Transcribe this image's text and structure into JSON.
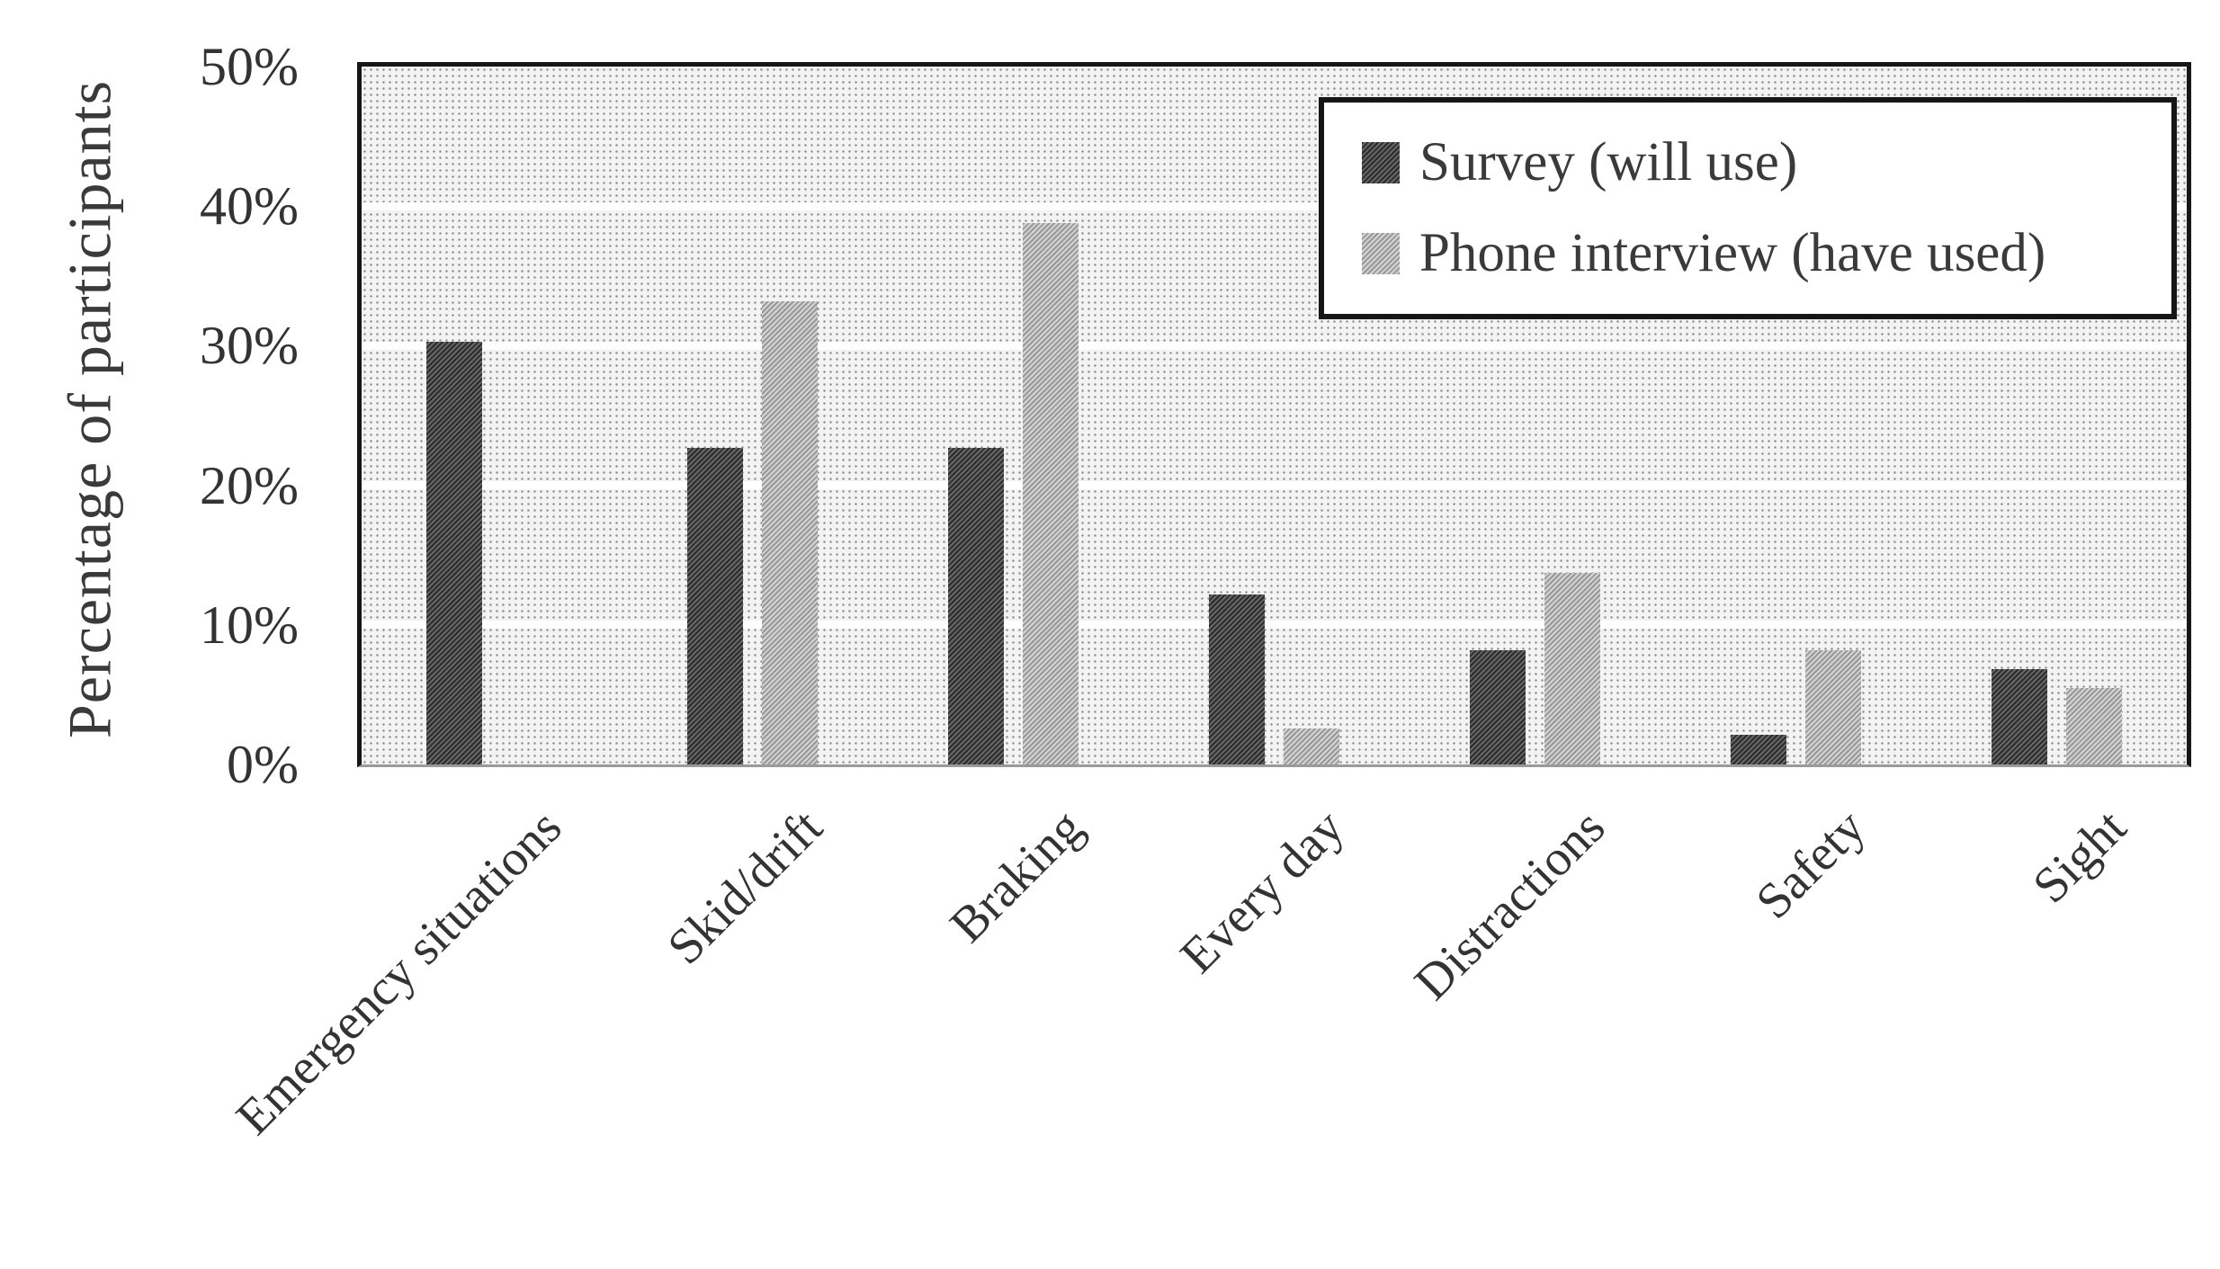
{
  "chart_data": {
    "type": "bar",
    "title": "",
    "categories": [
      "Emergency situations",
      "Skid/drift",
      "Braking",
      "Every day",
      "Distractions",
      "Safety",
      "Sight"
    ],
    "series": [
      {
        "name": "Survey (will use)",
        "values": [
          30.3,
          22.7,
          22.7,
          12.2,
          8.2,
          2.1,
          6.8
        ],
        "color": "#565656"
      },
      {
        "name": "Phone interview (have used)",
        "values": [
          0,
          33.2,
          38.8,
          2.6,
          13.7,
          8.2,
          5.5
        ],
        "color": "#b7b7b7"
      }
    ],
    "xlabel": "",
    "ylabel": "Percentage of participants",
    "ylim": [
      0,
      50
    ],
    "yticks": [
      0,
      10,
      20,
      30,
      40,
      50
    ],
    "ytick_labels": [
      "0%",
      "10%",
      "20%",
      "30%",
      "40%",
      "50%"
    ],
    "grid": "horizontal-white-lines",
    "legend_position": "top-right",
    "x_label_rotation_deg": 45
  },
  "colors": {
    "survey_bar": "#565656",
    "phone_bar": "#b7b7b7",
    "plot_background": "#f3f3f3",
    "gridline": "#ffffff",
    "border": "#161616",
    "text": "#3a3a3a"
  }
}
